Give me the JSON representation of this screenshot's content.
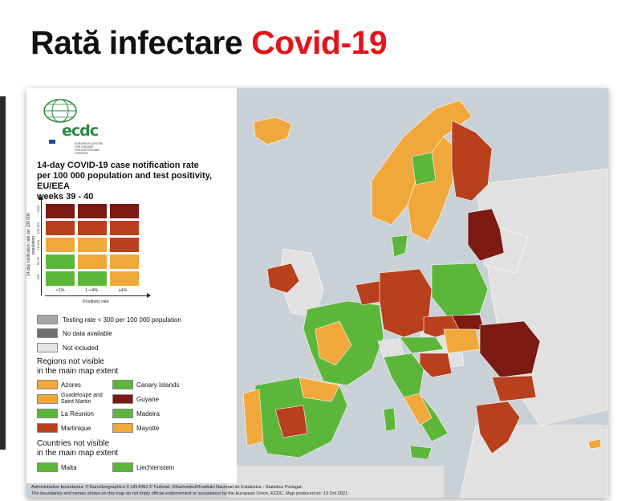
{
  "headline": {
    "prefix": "Rată infectare",
    "accent": "Covid-19"
  },
  "colors": {
    "accent": "#e3141b",
    "green": "#5cb63a",
    "orange": "#f0a83a",
    "red": "#b8401c",
    "darkred": "#7a1a12",
    "gray": "#a0a0a0",
    "lightgray": "#e0e0e0"
  },
  "logo": {
    "name": "ecdc",
    "subtitle": "EUROPEAN CENTRE FOR DISEASE PREVENTION AND CONTROL"
  },
  "legend": {
    "title_lines": [
      "14-day COVID-19 case notification rate",
      "per 100 000 population and test positivity, EU/EEA",
      "weeks 39 - 40"
    ],
    "y_axis_title": "14-day notification rate per 100 000 population",
    "y_ticks": [
      "<50",
      "50-75",
      "75-200",
      "200-499",
      ">500"
    ],
    "x_axis_title": "Positivity rate",
    "x_ticks": [
      "<1%",
      "1-<4%",
      "≥4%"
    ],
    "matrix_rows": [
      [
        "darkred",
        "darkred",
        "darkred"
      ],
      [
        "red",
        "red",
        "red"
      ],
      [
        "orange",
        "orange",
        "red"
      ],
      [
        "green",
        "orange",
        "orange"
      ],
      [
        "green",
        "green",
        "orange"
      ]
    ],
    "special": [
      {
        "label": "Testing rate < 300 per 100 000 population",
        "color": "#a6a6a6"
      },
      {
        "label": "No data available",
        "color": "#6f6f6f"
      },
      {
        "label": "Not included",
        "color": "#e3e3e3"
      }
    ],
    "regions_title": [
      "Regions not visible",
      "in the main map extent"
    ],
    "regions": [
      {
        "label": "Azores",
        "color": "orange"
      },
      {
        "label": "Canary Islands",
        "color": "green"
      },
      {
        "label": "Guadeloupe and Saint Martin",
        "color": "orange"
      },
      {
        "label": "Guyane",
        "color": "darkred"
      },
      {
        "label": "La Reunion",
        "color": "green"
      },
      {
        "label": "Madeira",
        "color": "green"
      },
      {
        "label": "Martinique",
        "color": "red"
      },
      {
        "label": "Mayotte",
        "color": "orange"
      }
    ],
    "countries_title": [
      "Countries not visible",
      "in the main map extent"
    ],
    "countries": [
      {
        "label": "Malta",
        "color": "green"
      },
      {
        "label": "Liechtenstein",
        "color": "green"
      }
    ]
  },
  "footer": {
    "line1": "Administrative boundaries: © EuroGeographics © UN-FAO © Turkstat. ©Kartverket©Instituto Nacional de Estatistica - Statistics Portugal.",
    "line2": "The boundaries and names shown on this map do not imply official endorsement or acceptance by the European Union. ECDC. Map produced on: 13 Oct 2021"
  }
}
